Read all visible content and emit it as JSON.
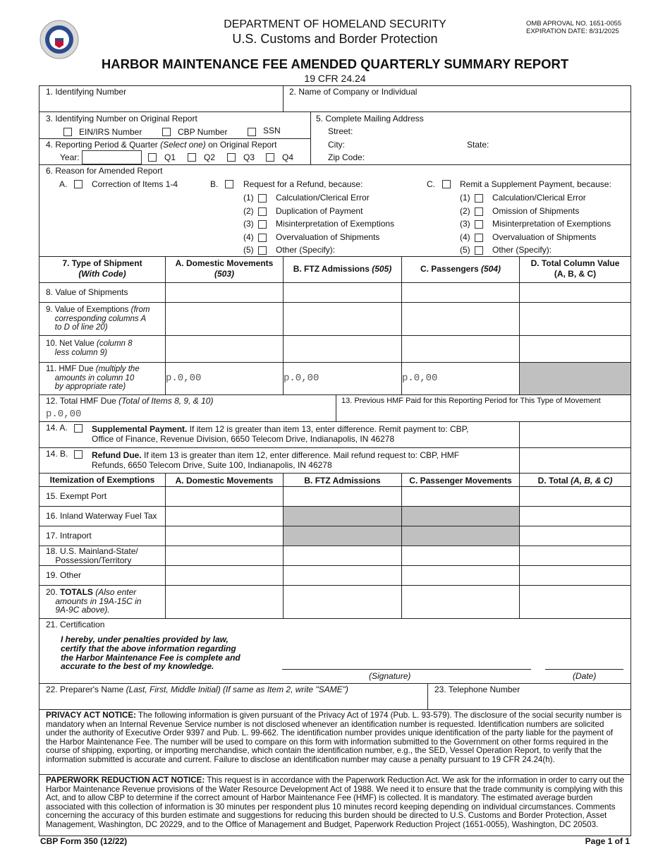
{
  "header": {
    "dept": "DEPARTMENT OF HOMELAND SECURITY",
    "agency": "U.S. Customs and Border Protection",
    "omb": "OMB APROVAL NO. 1651-0055",
    "expiration": "EXPIRATION DATE: 8/31/2025",
    "title": "HARBOR MAINTENANCE FEE AMENDED QUARTERLY SUMMARY REPORT",
    "cfr": "19 CFR 24.24",
    "seal": "CBP seal"
  },
  "f1": "1.  Identifying Number",
  "f2": "2.  Name of Company or Individual",
  "f3": {
    "label": "3. Identifying Number on Original Report",
    "opts": [
      "EIN/IRS Number",
      "CBP Number",
      "SSN"
    ]
  },
  "f4": {
    "label": "4.  Reporting Period & Quarter ",
    "label_i": "(Select one)",
    "label_end": " on Original Report",
    "year": "Year:",
    "quarters": [
      "Q1",
      "Q2",
      "Q3",
      "Q4"
    ]
  },
  "f5": {
    "label": "5.  Complete Mailing Address",
    "street": "Street:",
    "city": "City:",
    "state": "State:",
    "zip": "Zip Code:"
  },
  "f6": {
    "label": "6. Reason for Amended Report",
    "a_letter": "A.",
    "a_text": "Correction of Items 1-4",
    "b_letter": "B.",
    "b_text": "Request for a Refund, because:",
    "c_letter": "C.",
    "c_text": "Remit a Supplement Payment, because:",
    "b_items": [
      {
        "n": "(1)",
        "t": "Calculation/Clerical Error"
      },
      {
        "n": "(2)",
        "t": "Duplication of Payment"
      },
      {
        "n": "(3)",
        "t": "Misinterpretation of Exemptions"
      },
      {
        "n": "(4)",
        "t": "Overvaluation of Shipments"
      },
      {
        "n": "(5)",
        "t": "Other (Specify):"
      }
    ],
    "c_items": [
      {
        "n": "(1)",
        "t": "Calculation/Clerical Error"
      },
      {
        "n": "(2)",
        "t": "Omission of Shipments"
      },
      {
        "n": "(3)",
        "t": "Misinterpretation of Exemptions"
      },
      {
        "n": "(4)",
        "t": "Overvaluation of Shipments"
      },
      {
        "n": "(5)",
        "t": "Other (Specify):"
      }
    ]
  },
  "t1": {
    "h0a": "7. Type of Shipment",
    "h0b": "(With Code)",
    "h1a": "A. Domestic Movements",
    "h1b": "(503)",
    "h2a": "B. FTZ Admissions ",
    "h2b": "(505)",
    "h3a": "C. Passengers ",
    "h3b": "(504)",
    "h4a": "D. Total Column Value",
    "h4b": "(A, B, & C)",
    "r8": "8. Value of Shipments",
    "r9a": "9. Value of Exemptions ",
    "r9b": "(from",
    "r9c": "corresponding columns A",
    "r9d": "to D of line 20)",
    "r10a": "10. Net Value ",
    "r10b": "(column 8",
    "r10c": "less column 9)",
    "r11a": "11. HMF Due ",
    "r11b": "(multiply the",
    "r11c": "amounts in column 10",
    "r11d": "by appropriate rate)",
    "placeholder": "p.0,00"
  },
  "f12": {
    "label": "12. Total HMF Due  ",
    "label_i": "(Total of Items 8, 9, & 10)",
    "value": "p.0,00"
  },
  "f13": "13. Previous HMF Paid for this Reporting Period for This Type of Movement",
  "f14a": {
    "n": "14. A.",
    "bold": "Supplemental Payment.",
    "text": "  If item 12 is greater than item 13, enter difference.  Remit payment to:  CBP,",
    "text2": "Office of Finance, Revenue Division, 6650 Telecom Drive, Indianapolis, IN 46278"
  },
  "f14b": {
    "n": "14. B.",
    "bold": "Refund Due.",
    "text": "  If item 13 is greater than item 12, enter difference.  Mail refund request to:  CBP, HMF",
    "text2": "Refunds, 6650 Telecom Drive, Suite 100, Indianapolis, IN 46278"
  },
  "t2": {
    "h0": "Itemization of Exemptions",
    "h1": "A. Domestic Movements",
    "h2": "B. FTZ Admissions",
    "h3": "C. Passenger Movements",
    "h4": "D. Total ",
    "h4i": "(A, B, & C)",
    "r15": "15. Exempt Port",
    "r16": "16. Inland Waterway Fuel Tax",
    "r17": "17. Intraport",
    "r18a": "18. U.S. Mainland-State/",
    "r18b": "Possession/Territory",
    "r19": "19. Other",
    "r20a": "20. ",
    "r20b": "TOTALS",
    "r20c": " (Also enter",
    "r20d": "amounts in 19A-15C in",
    "r20e": "9A-9C above)."
  },
  "f21": {
    "label": "21. Certification",
    "cert": "I hereby, under penalties provided by law, certify that the above information regarding the Harbor Maintenance Fee is complete and accurate to the best of my knowledge.",
    "signature": "(Signature)",
    "date": "(Date)"
  },
  "f22": {
    "label": "22. Preparer's Name  ",
    "label_i": "(Last, First, Middle Initial) (If same as Item 2, write \"SAME\")"
  },
  "f23": "23. Telephone Number",
  "privacy": {
    "title": "PRIVACY ACT NOTICE:",
    "text": "  The following information is given pursuant of the Privacy Act of 1974 (Pub. L. 93-579).  The disclosure of the social security number is mandatory when an Internal Revenue Service number is not disclosed whenever an identification number is requested. Identification numbers are solicited under the authority of Executive Order 9397 and Pub. L. 99-662.  The identification number provides unique identification of the party liable for the payment of the Harbor Maintenance Fee.  The number will be used to compare on this form with information submitted to the Government on other forms required in the course of shipping, exporting, or importing merchandise, which contain the identification number, e.g., the SED, Vessel Operation Report, to verify that the information submitted is accurate and current.  Failure to disclose an identification number may cause a penalty pursuant to 19 CFR 24.24(h)."
  },
  "paperwork": {
    "title": "PAPERWORK REDUCTION ACT NOTICE:",
    "text": "  This request is in accordance with the Paperwork Reduction Act.  We ask for the information in order to carry out the Harbor Maintenance Revenue provisions of the Water Resource Development Act of 1988.  We need it to ensure that the trade community is complying with this Act, and to allow CBP to determine if the correct amount of Harbor Maintenance Fee (HMF) is collected.  It is mandatory.  The estimated average burden associated with this collection of information is 30 minutes per respondent plus 10 minutes record keeping depending on individual circumstances.  Comments concerning the accuracy of this burden estimate and suggestions for reducing this burden should be directed to U.S. Customs and Border Protection, Asset Management, Washington, DC 20229, and to the Office of Management and Budget, Paperwork Reduction Project (1651-0055), Washington, DC 20503."
  },
  "footer": {
    "form": "CBP Form 350 (12/22)",
    "page": "Page 1 of 1"
  }
}
